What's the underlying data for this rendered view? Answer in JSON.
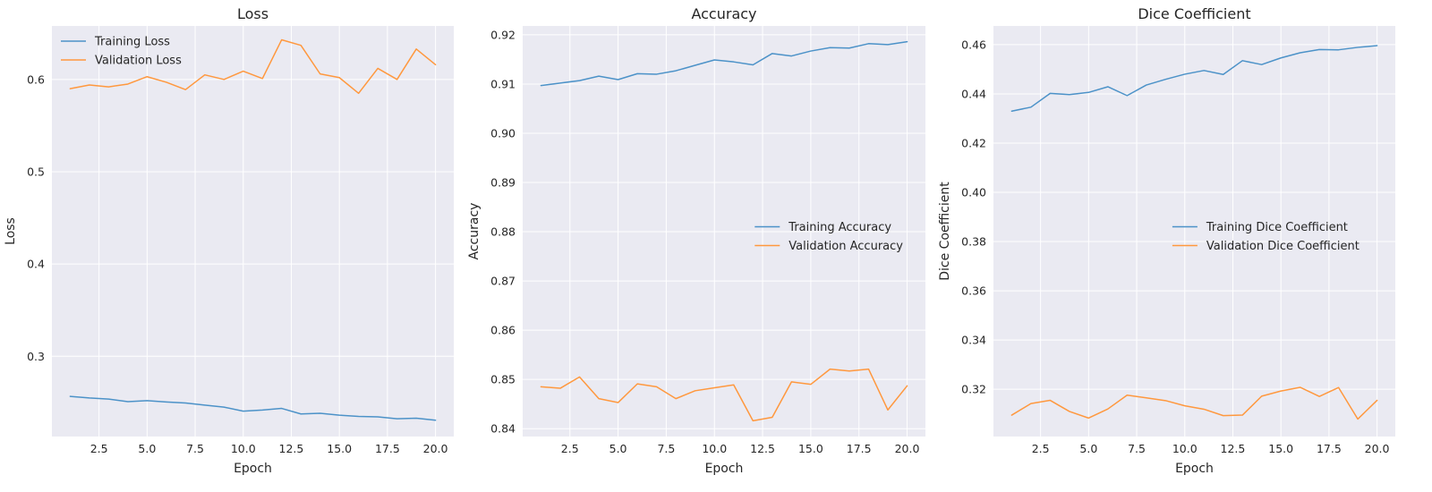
{
  "colors": {
    "training": "#4c92c8",
    "validation": "#ff983e",
    "panel": "#eaeaf2",
    "grid": "#ffffff"
  },
  "chart_data": [
    {
      "type": "line",
      "title": "Loss",
      "xlabel": "Epoch",
      "ylabel": "Loss",
      "legend": "top-left",
      "grid": true,
      "xlim": [
        0.05,
        20.95
      ],
      "ylim": [
        0.213,
        0.658
      ],
      "xticks": [
        2.5,
        5.0,
        7.5,
        10.0,
        12.5,
        15.0,
        17.5,
        20.0
      ],
      "xtick_labels": [
        "2.5",
        "5.0",
        "7.5",
        "10.0",
        "12.5",
        "15.0",
        "17.5",
        "20.0"
      ],
      "yticks": [
        0.3,
        0.4,
        0.5,
        0.6
      ],
      "ytick_labels": [
        "0.3",
        "0.4",
        "0.5",
        "0.6"
      ],
      "x": [
        1,
        2,
        3,
        4,
        5,
        6,
        7,
        8,
        9,
        10,
        11,
        12,
        13,
        14,
        15,
        16,
        17,
        18,
        19,
        20
      ],
      "series": [
        {
          "name": "Training Loss",
          "values": [
            0.2565,
            0.2548,
            0.2536,
            0.2508,
            0.2519,
            0.2505,
            0.2494,
            0.2471,
            0.2449,
            0.2405,
            0.2417,
            0.2435,
            0.2375,
            0.2382,
            0.2362,
            0.2348,
            0.2343,
            0.2323,
            0.2329,
            0.2307
          ]
        },
        {
          "name": "Validation Loss",
          "values": [
            0.59,
            0.594,
            0.592,
            0.595,
            0.603,
            0.597,
            0.589,
            0.605,
            0.6,
            0.609,
            0.601,
            0.643,
            0.637,
            0.606,
            0.602,
            0.585,
            0.612,
            0.6,
            0.633,
            0.616
          ]
        }
      ]
    },
    {
      "type": "line",
      "title": "Accuracy",
      "xlabel": "Epoch",
      "ylabel": "Accuracy",
      "legend": "center-right",
      "grid": true,
      "xlim": [
        0.05,
        20.95
      ],
      "ylim": [
        0.8384,
        0.9218
      ],
      "xticks": [
        2.5,
        5.0,
        7.5,
        10.0,
        12.5,
        15.0,
        17.5,
        20.0
      ],
      "xtick_labels": [
        "2.5",
        "5.0",
        "7.5",
        "10.0",
        "12.5",
        "15.0",
        "17.5",
        "20.0"
      ],
      "yticks": [
        0.84,
        0.85,
        0.86,
        0.87,
        0.88,
        0.89,
        0.9,
        0.91,
        0.92
      ],
      "ytick_labels": [
        "0.84",
        "0.85",
        "0.86",
        "0.87",
        "0.88",
        "0.89",
        "0.90",
        "0.91",
        "0.92"
      ],
      "x": [
        1,
        2,
        3,
        4,
        5,
        6,
        7,
        8,
        9,
        10,
        11,
        12,
        13,
        14,
        15,
        16,
        17,
        18,
        19,
        20
      ],
      "series": [
        {
          "name": "Training Accuracy",
          "values": [
            0.9097,
            0.9102,
            0.9107,
            0.9116,
            0.9109,
            0.9121,
            0.912,
            0.9127,
            0.9138,
            0.9149,
            0.9145,
            0.9139,
            0.9162,
            0.9157,
            0.9167,
            0.9174,
            0.9173,
            0.9182,
            0.918,
            0.9186
          ]
        },
        {
          "name": "Validation Accuracy",
          "values": [
            0.8485,
            0.8482,
            0.8505,
            0.8461,
            0.8453,
            0.8491,
            0.8485,
            0.8461,
            0.8477,
            0.8483,
            0.8489,
            0.8416,
            0.8423,
            0.8495,
            0.849,
            0.8521,
            0.8517,
            0.8521,
            0.8438,
            0.8487
          ]
        }
      ]
    },
    {
      "type": "line",
      "title": "Dice Coefficient",
      "xlabel": "Epoch",
      "ylabel": "Dice Coefficient",
      "legend": "center-right",
      "grid": true,
      "xlim": [
        0.05,
        20.95
      ],
      "ylim": [
        0.3008,
        0.4676
      ],
      "xticks": [
        2.5,
        5.0,
        7.5,
        10.0,
        12.5,
        15.0,
        17.5,
        20.0
      ],
      "xtick_labels": [
        "2.5",
        "5.0",
        "7.5",
        "10.0",
        "12.5",
        "15.0",
        "17.5",
        "20.0"
      ],
      "yticks": [
        0.32,
        0.34,
        0.36,
        0.38,
        0.4,
        0.42,
        0.44,
        0.46
      ],
      "ytick_labels": [
        "0.32",
        "0.34",
        "0.36",
        "0.38",
        "0.40",
        "0.42",
        "0.44",
        "0.46"
      ],
      "x": [
        1,
        2,
        3,
        4,
        5,
        6,
        7,
        8,
        9,
        10,
        11,
        12,
        13,
        14,
        15,
        16,
        17,
        18,
        19,
        20
      ],
      "series": [
        {
          "name": "Training Dice Coefficient",
          "values": [
            0.433,
            0.4346,
            0.4402,
            0.4397,
            0.4406,
            0.4429,
            0.4393,
            0.4436,
            0.4459,
            0.448,
            0.4495,
            0.4479,
            0.4535,
            0.4519,
            0.4546,
            0.4567,
            0.458,
            0.4579,
            0.4589,
            0.4596
          ]
        },
        {
          "name": "Validation Dice Coefficient",
          "values": [
            0.3095,
            0.3142,
            0.3155,
            0.311,
            0.3083,
            0.312,
            0.3176,
            0.3165,
            0.3154,
            0.3133,
            0.3119,
            0.3093,
            0.3095,
            0.3172,
            0.3193,
            0.3208,
            0.3171,
            0.3207,
            0.3079,
            0.3155
          ]
        }
      ]
    }
  ]
}
